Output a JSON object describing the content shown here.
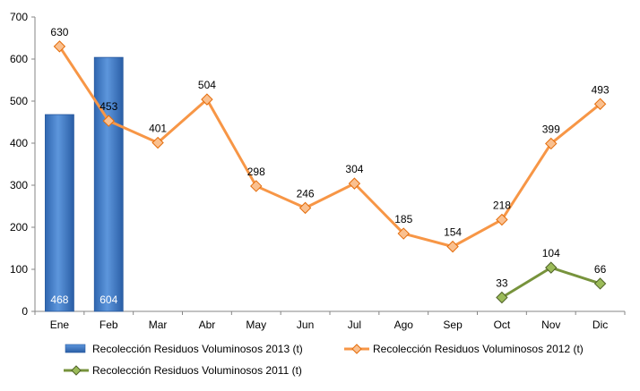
{
  "chart_data": {
    "type": "bar",
    "categories": [
      "Ene",
      "Feb",
      "Mar",
      "Abr",
      "May",
      "Jun",
      "Jul",
      "Ago",
      "Sep",
      "Oct",
      "Nov",
      "Dic"
    ],
    "ylim": [
      0,
      700
    ],
    "yticks": [
      0,
      100,
      200,
      300,
      400,
      500,
      600,
      700
    ],
    "grid": false,
    "legend_position": "bottom",
    "series": [
      {
        "name": "Recolección Residuos Voluminosos 2013 (t)",
        "kind": "bar",
        "color": "#3f7fcb",
        "values": [
          468,
          604,
          null,
          null,
          null,
          null,
          null,
          null,
          null,
          null,
          null,
          null
        ]
      },
      {
        "name": "Recolección Residuos Voluminosos 2012 (t)",
        "kind": "line",
        "color": "#f79646",
        "marker": "diamond",
        "values": [
          630,
          453,
          401,
          504,
          298,
          246,
          304,
          185,
          154,
          218,
          399,
          493
        ]
      },
      {
        "name": "Recolección Residuos Voluminosos 2011 (t)",
        "kind": "line",
        "color": "#77933c",
        "marker": "diamond",
        "values": [
          null,
          null,
          null,
          null,
          null,
          null,
          null,
          null,
          null,
          33,
          104,
          66
        ]
      }
    ]
  }
}
